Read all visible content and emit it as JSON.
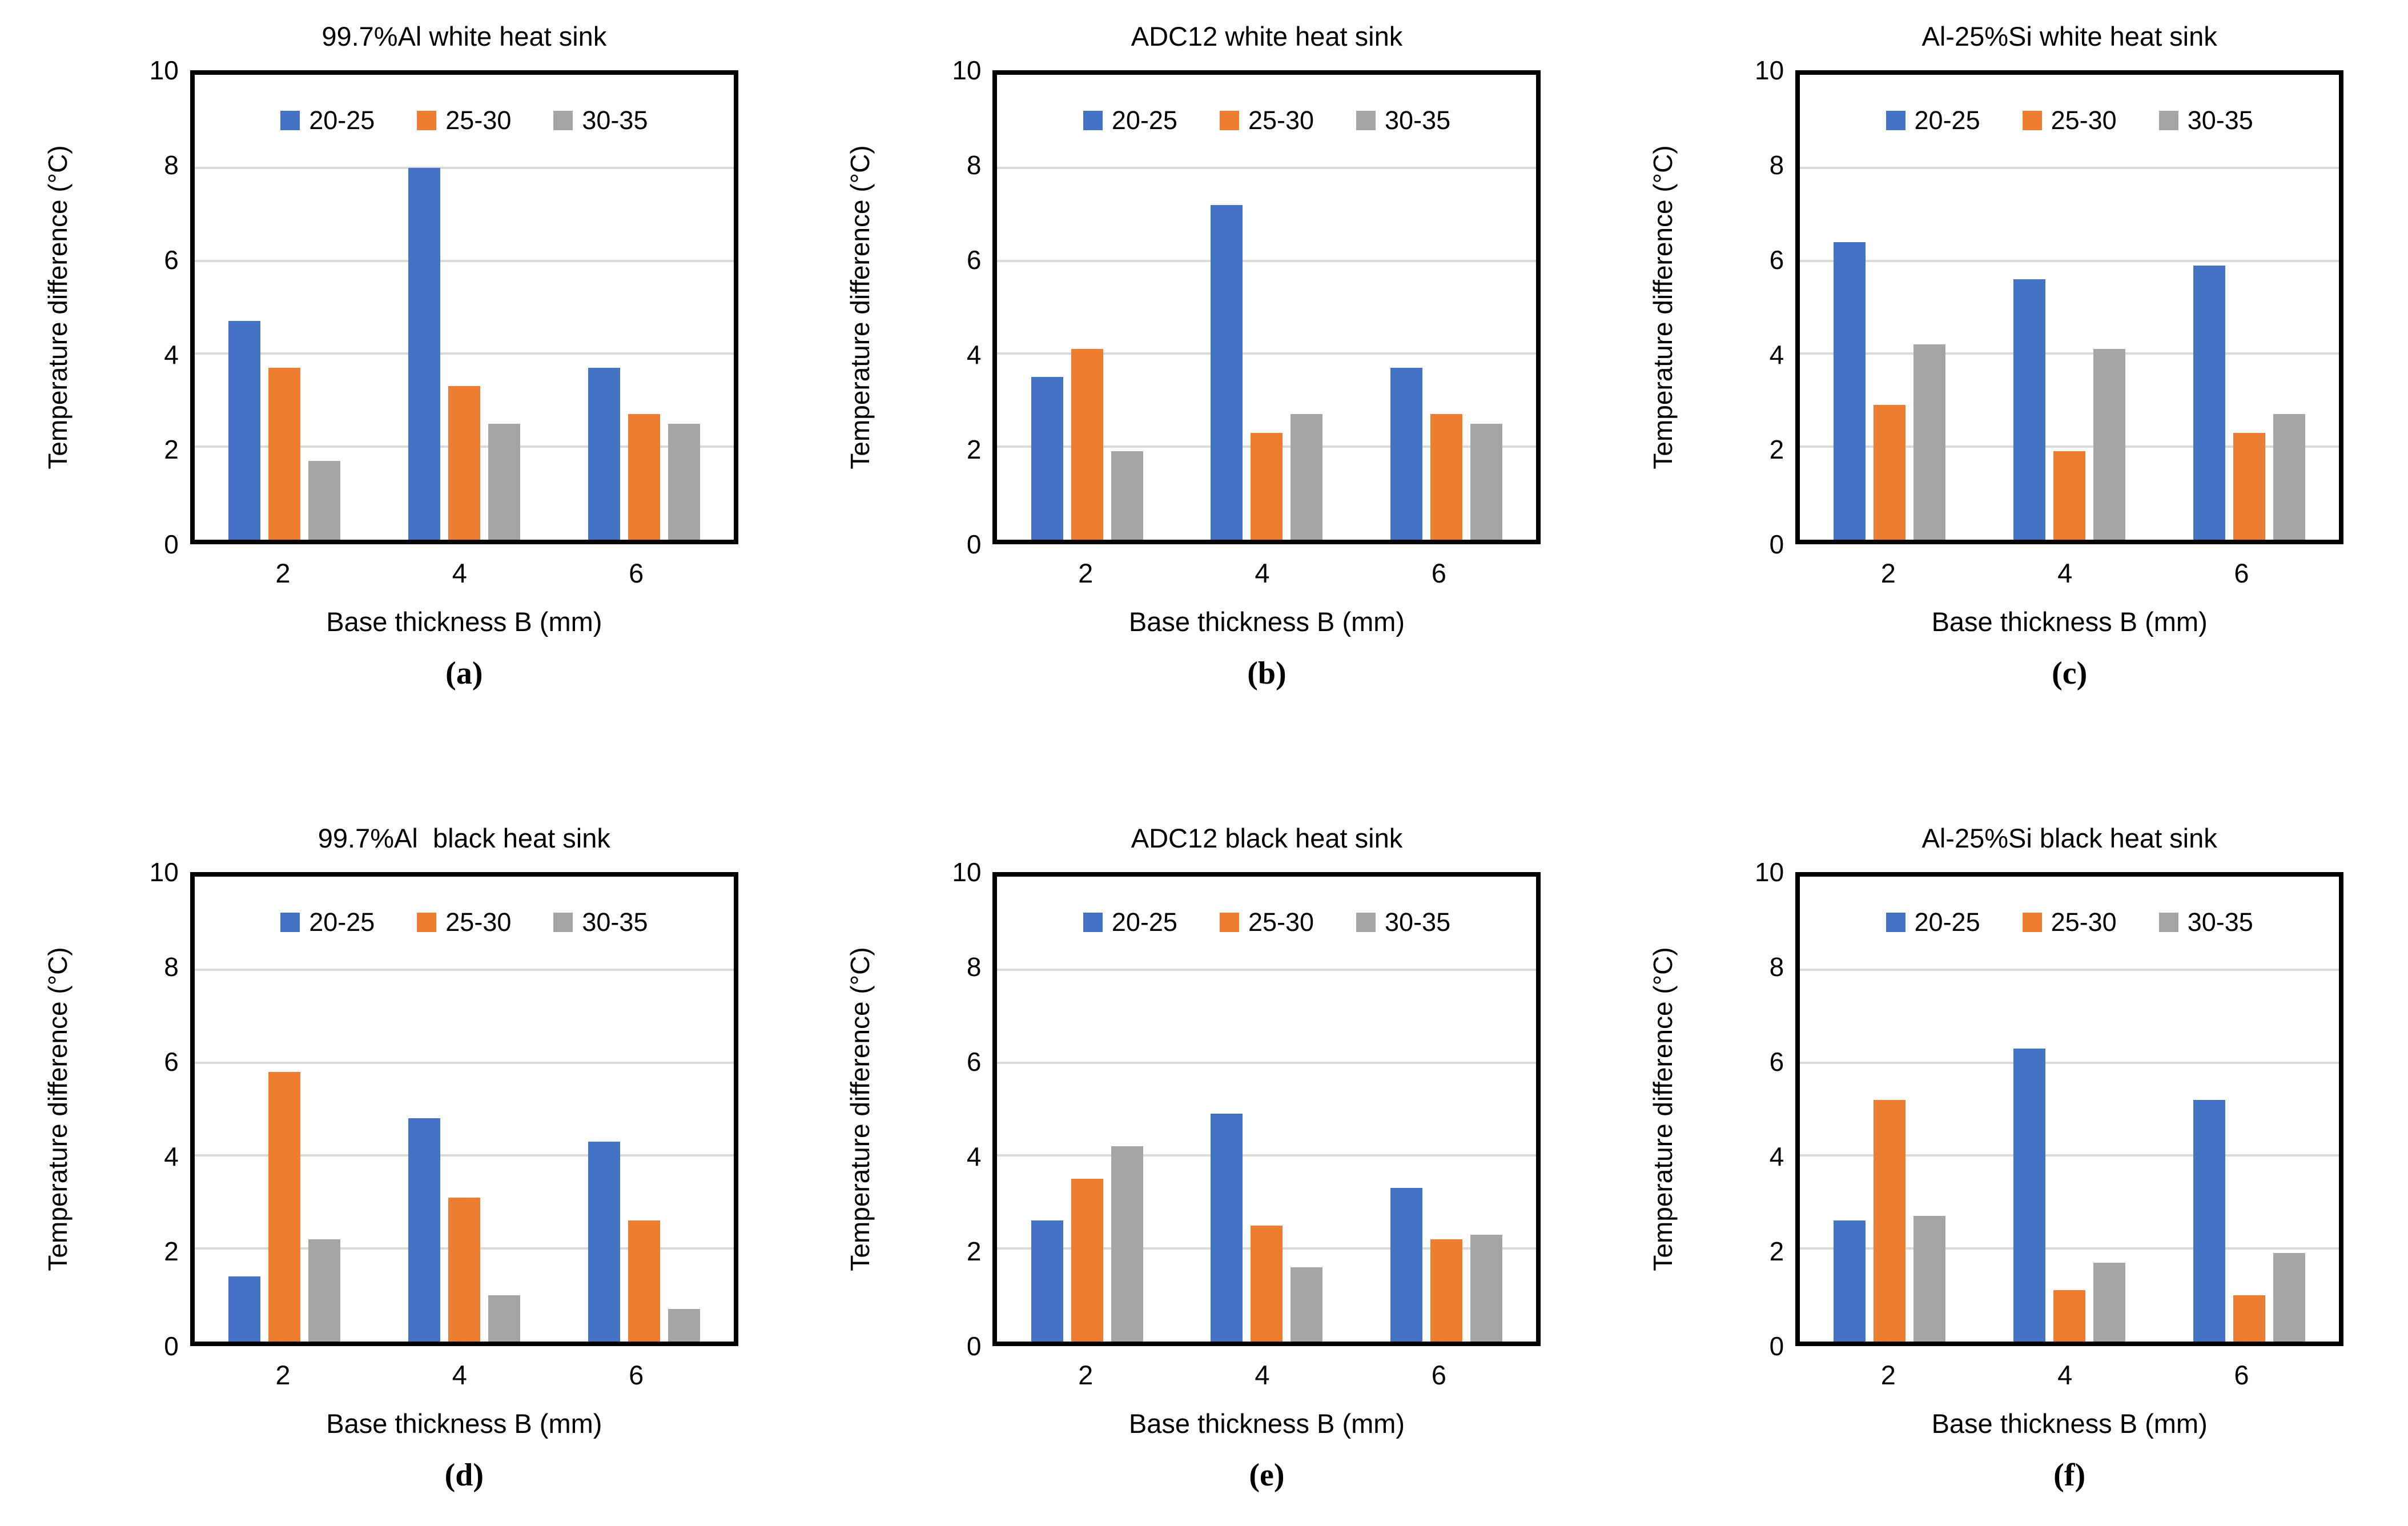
{
  "axes": {
    "ylabel": "Temperature difference (°C)",
    "xlabel": "Base thickness B (mm)",
    "yticks": [
      0,
      2,
      4,
      6,
      8,
      10
    ],
    "gridlines": [
      2,
      4,
      6,
      8
    ],
    "ylim": [
      0,
      10
    ]
  },
  "legend": {
    "position": "top-inside",
    "items": [
      {
        "label": "20-25",
        "color": "#4472C4"
      },
      {
        "label": "25-30",
        "color": "#ED7D31"
      },
      {
        "label": "30-35",
        "color": "#A5A5A5"
      }
    ]
  },
  "colors": {
    "series_blue": "#4472C4",
    "series_orange": "#ED7D31",
    "series_gray": "#A5A5A5",
    "gridline": "#D9D9D9",
    "plot_border": "#000000",
    "text": "#000000",
    "background": "#ffffff"
  },
  "chart_data": [
    {
      "type": "bar",
      "title": "99.7%Al white heat sink",
      "caption": "(a)",
      "categories": [
        "2",
        "4",
        "6"
      ],
      "xlabel": "Base thickness B (mm)",
      "ylabel": "Temperature difference (°C)",
      "ylim": [
        0,
        10
      ],
      "grid": true,
      "legend_position": "top-inside",
      "series": [
        {
          "name": "20-25",
          "color": "#4472C4",
          "values": [
            4.7,
            8.0,
            3.7
          ]
        },
        {
          "name": "25-30",
          "color": "#ED7D31",
          "values": [
            3.7,
            3.3,
            2.7
          ]
        },
        {
          "name": "30-35",
          "color": "#A5A5A5",
          "values": [
            1.7,
            2.5,
            2.5
          ]
        }
      ]
    },
    {
      "type": "bar",
      "title": "ADC12 white heat sink",
      "caption": "(b)",
      "categories": [
        "2",
        "4",
        "6"
      ],
      "xlabel": "Base thickness B (mm)",
      "ylabel": "Temperature difference (°C)",
      "ylim": [
        0,
        10
      ],
      "grid": true,
      "legend_position": "top-inside",
      "series": [
        {
          "name": "20-25",
          "color": "#4472C4",
          "values": [
            3.5,
            7.2,
            3.7
          ]
        },
        {
          "name": "25-30",
          "color": "#ED7D31",
          "values": [
            4.1,
            2.3,
            2.7
          ]
        },
        {
          "name": "30-35",
          "color": "#A5A5A5",
          "values": [
            1.9,
            2.7,
            2.5
          ]
        }
      ]
    },
    {
      "type": "bar",
      "title": "Al-25%Si white heat sink",
      "caption": "(c)",
      "categories": [
        "2",
        "4",
        "6"
      ],
      "xlabel": "Base thickness B (mm)",
      "ylabel": "Temperature difference (°C)",
      "ylim": [
        0,
        10
      ],
      "grid": true,
      "legend_position": "top-inside",
      "series": [
        {
          "name": "20-25",
          "color": "#4472C4",
          "values": [
            6.4,
            5.6,
            5.9
          ]
        },
        {
          "name": "25-30",
          "color": "#ED7D31",
          "values": [
            2.9,
            1.9,
            2.3
          ]
        },
        {
          "name": "30-35",
          "color": "#A5A5A5",
          "values": [
            4.2,
            4.1,
            2.7
          ]
        }
      ]
    },
    {
      "type": "bar",
      "title": "99.7%Al  black heat sink",
      "caption": "(d)",
      "categories": [
        "2",
        "4",
        "6"
      ],
      "xlabel": "Base thickness B (mm)",
      "ylabel": "Temperature difference (°C)",
      "ylim": [
        0,
        10
      ],
      "grid": true,
      "legend_position": "top-inside",
      "series": [
        {
          "name": "20-25",
          "color": "#4472C4",
          "values": [
            1.4,
            4.8,
            4.3
          ]
        },
        {
          "name": "25-30",
          "color": "#ED7D31",
          "values": [
            5.8,
            3.1,
            2.6
          ]
        },
        {
          "name": "30-35",
          "color": "#A5A5A5",
          "values": [
            2.2,
            1.0,
            0.7
          ]
        }
      ]
    },
    {
      "type": "bar",
      "title": "ADC12 black heat sink",
      "caption": "(e)",
      "categories": [
        "2",
        "4",
        "6"
      ],
      "xlabel": "Base thickness B (mm)",
      "ylabel": "Temperature difference (°C)",
      "ylim": [
        0,
        10
      ],
      "grid": true,
      "legend_position": "top-inside",
      "series": [
        {
          "name": "20-25",
          "color": "#4472C4",
          "values": [
            2.6,
            4.9,
            3.3
          ]
        },
        {
          "name": "25-30",
          "color": "#ED7D31",
          "values": [
            3.5,
            2.5,
            2.2
          ]
        },
        {
          "name": "30-35",
          "color": "#A5A5A5",
          "values": [
            4.2,
            1.6,
            2.3
          ]
        }
      ]
    },
    {
      "type": "bar",
      "title": "Al-25%Si black heat sink",
      "caption": "(f)",
      "categories": [
        "2",
        "4",
        "6"
      ],
      "xlabel": "Base thickness B (mm)",
      "ylabel": "Temperature difference (°C)",
      "ylim": [
        0,
        10
      ],
      "grid": true,
      "legend_position": "top-inside",
      "series": [
        {
          "name": "20-25",
          "color": "#4472C4",
          "values": [
            2.6,
            6.3,
            5.2
          ]
        },
        {
          "name": "25-30",
          "color": "#ED7D31",
          "values": [
            5.2,
            1.1,
            1.0
          ]
        },
        {
          "name": "30-35",
          "color": "#A5A5A5",
          "values": [
            2.7,
            1.7,
            1.9
          ]
        }
      ]
    }
  ]
}
